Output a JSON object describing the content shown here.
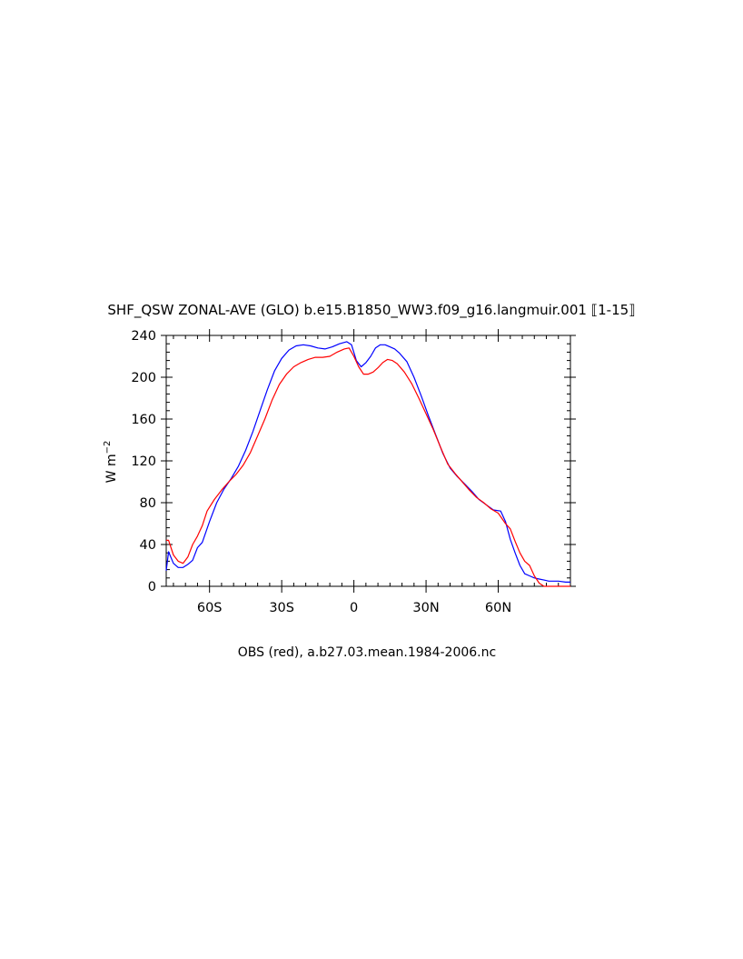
{
  "chart_data": {
    "type": "line",
    "title": "SHF_QSW ZONAL-AVE (GLO) b.e15.B1850_WW3.f09_g16.langmuir.001 ⟦1-15⟧",
    "caption": "OBS (red), a.b27.03.mean.1984-2006.nc",
    "ylabel": {
      "base": "W m",
      "exponent": "−2"
    },
    "xlabel": "",
    "xlim": [
      -78,
      90
    ],
    "ylim": [
      0,
      240
    ],
    "x_ticks": [
      {
        "value": -60,
        "label": "60S"
      },
      {
        "value": -30,
        "label": "30S"
      },
      {
        "value": 0,
        "label": "0"
      },
      {
        "value": 30,
        "label": "30N"
      },
      {
        "value": 60,
        "label": "60N"
      }
    ],
    "y_ticks": [
      {
        "value": 0,
        "label": "0"
      },
      {
        "value": 40,
        "label": "40"
      },
      {
        "value": 80,
        "label": "80"
      },
      {
        "value": 120,
        "label": "120"
      },
      {
        "value": 160,
        "label": "160"
      },
      {
        "value": 200,
        "label": "200"
      },
      {
        "value": 240,
        "label": "240"
      }
    ],
    "grid": false,
    "series": [
      {
        "color": "#0000ff",
        "x": [
          -78,
          -77,
          -75,
          -73,
          -71,
          -69,
          -67,
          -65,
          -63,
          -60,
          -57,
          -54,
          -51,
          -48,
          -45,
          -42,
          -39,
          -36,
          -33,
          -30,
          -27,
          -24,
          -21,
          -18,
          -15,
          -12,
          -9,
          -6,
          -3,
          -1,
          1,
          3,
          5,
          7,
          9,
          11,
          13,
          15,
          17,
          19,
          22,
          25,
          28,
          31,
          34,
          37,
          40,
          43,
          46,
          49,
          52,
          55,
          58,
          61,
          63,
          65,
          67,
          69,
          71,
          73,
          75,
          77,
          79,
          81,
          83,
          85,
          88,
          90
        ],
        "y": [
          15,
          33,
          22,
          18,
          18,
          21,
          25,
          37,
          42,
          62,
          80,
          93,
          103,
          115,
          130,
          148,
          168,
          188,
          206,
          218,
          226,
          230,
          231,
          230,
          228,
          227,
          229,
          232,
          234,
          231,
          216,
          210,
          214,
          220,
          228,
          231,
          231,
          229,
          227,
          223,
          215,
          200,
          182,
          163,
          145,
          127,
          113,
          105,
          98,
          91,
          83,
          78,
          73,
          72,
          62,
          45,
          32,
          20,
          12,
          10,
          8,
          7,
          6,
          5,
          5,
          5,
          4,
          4
        ]
      },
      {
        "color": "#ff0000",
        "x": [
          -78,
          -77,
          -75,
          -73,
          -71,
          -69,
          -67,
          -65,
          -63,
          -61,
          -58,
          -55,
          -52,
          -49,
          -46,
          -43,
          -40,
          -37,
          -34,
          -31,
          -28,
          -25,
          -22,
          -19,
          -16,
          -13,
          -10,
          -7,
          -4,
          -2,
          0,
          2,
          4,
          6,
          8,
          10,
          12,
          14,
          16,
          18,
          21,
          24,
          27,
          30,
          33,
          36,
          39,
          42,
          45,
          48,
          51,
          54,
          57,
          60,
          63,
          65,
          67,
          69,
          71,
          73,
          75,
          77,
          79,
          81,
          83,
          85,
          88,
          90
        ],
        "y": [
          44,
          44,
          30,
          24,
          22,
          28,
          40,
          48,
          58,
          72,
          83,
          92,
          100,
          107,
          116,
          128,
          144,
          160,
          178,
          193,
          203,
          210,
          214,
          217,
          219,
          219,
          220,
          224,
          227,
          228,
          220,
          210,
          203,
          203,
          205,
          209,
          214,
          217,
          216,
          213,
          205,
          194,
          180,
          165,
          150,
          133,
          117,
          108,
          100,
          92,
          85,
          80,
          74,
          70,
          60,
          55,
          43,
          32,
          24,
          20,
          10,
          3,
          0,
          0,
          0,
          0,
          0,
          0
        ]
      }
    ]
  }
}
